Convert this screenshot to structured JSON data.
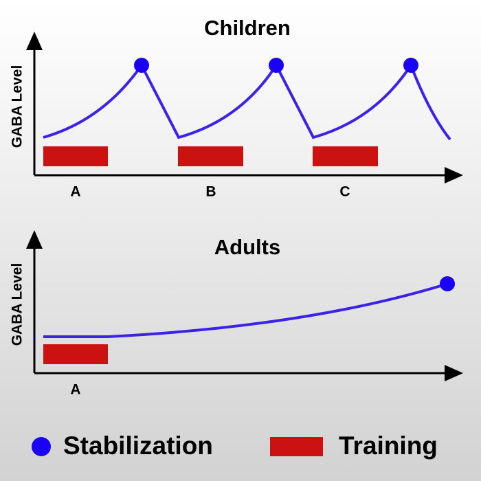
{
  "panels": [
    {
      "title": "Children",
      "y_axis_label": "GABA Level",
      "training_labels": [
        "A",
        "B",
        "C"
      ]
    },
    {
      "title": "Adults",
      "y_axis_label": "GABA Level",
      "training_labels": [
        "A"
      ]
    }
  ],
  "legend": {
    "items": [
      "Stabilization",
      "Training"
    ]
  }
}
